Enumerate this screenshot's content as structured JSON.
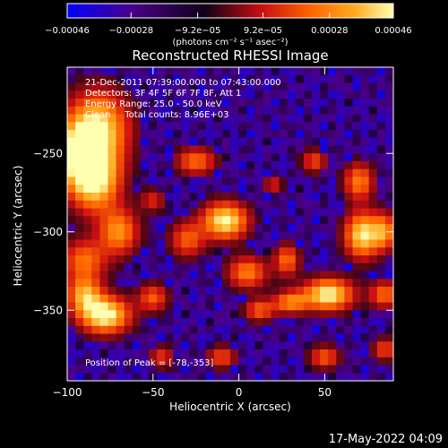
{
  "chart_data": {
    "type": "heatmap",
    "title": "Reconstructed RHESSI Image",
    "xlabel": "Heliocentric X (arcsec)",
    "ylabel": "Heliocentric Y (arcsec)",
    "xlim": [
      -100,
      90
    ],
    "ylim": [
      -395,
      -195
    ],
    "x_ticks": [
      -100,
      -50,
      0,
      50
    ],
    "y_ticks": [
      -250,
      -300,
      -350
    ],
    "colorbar": {
      "ticks": [
        "-0.00046",
        "-0.00028",
        "-9.2e-05",
        "9.2e-05",
        "0.00028",
        "0.00046"
      ],
      "unit_label": "(photons cm⁻² s⁻¹ asec⁻²)",
      "range": [
        -0.00046,
        0.00046
      ]
    },
    "annotations": [
      "21-Dec-2011 07:39:00.000 to 07:43:00.000",
      "Detectors: 3F 4F 5F 6F 7F 8F, Att 1",
      "Energy Range: 25.0 - 50.0 keV",
      "Clean     Total counts: 8.96E+03",
      "Position of Peak = [-78,-353]"
    ],
    "peak": {
      "x": -78,
      "y": -353
    },
    "blobs": [
      {
        "x": -82,
        "y": -234,
        "sx": 12,
        "sy": 16,
        "a": 0.9
      },
      {
        "x": -84,
        "y": -266,
        "sx": 10,
        "sy": 14,
        "a": 1.0
      },
      {
        "x": -95,
        "y": -250,
        "sx": 8,
        "sy": 14,
        "a": 0.7
      },
      {
        "x": -70,
        "y": -300,
        "sx": 8,
        "sy": 10,
        "a": 0.65
      },
      {
        "x": -90,
        "y": -318,
        "sx": 9,
        "sy": 9,
        "a": 0.55
      },
      {
        "x": -78,
        "y": -353,
        "sx": 10,
        "sy": 8,
        "a": 1.0
      },
      {
        "x": -90,
        "y": -340,
        "sx": 7,
        "sy": 8,
        "a": 0.7
      },
      {
        "x": -50,
        "y": -342,
        "sx": 6,
        "sy": 6,
        "a": 0.5
      },
      {
        "x": -25,
        "y": -255,
        "sx": 8,
        "sy": 6,
        "a": 0.55
      },
      {
        "x": -8,
        "y": -293,
        "sx": 9,
        "sy": 8,
        "a": 0.95
      },
      {
        "x": -30,
        "y": -305,
        "sx": 7,
        "sy": 8,
        "a": 0.5
      },
      {
        "x": 5,
        "y": -326,
        "sx": 8,
        "sy": 7,
        "a": 0.6
      },
      {
        "x": 28,
        "y": -318,
        "sx": 5,
        "sy": 7,
        "a": 0.55
      },
      {
        "x": 12,
        "y": -350,
        "sx": 6,
        "sy": 5,
        "a": 0.5
      },
      {
        "x": 30,
        "y": -345,
        "sx": 7,
        "sy": 5,
        "a": 0.6
      },
      {
        "x": 52,
        "y": -340,
        "sx": 10,
        "sy": 7,
        "a": 0.95
      },
      {
        "x": 44,
        "y": -255,
        "sx": 5,
        "sy": 5,
        "a": 0.45
      },
      {
        "x": 70,
        "y": -268,
        "sx": 6,
        "sy": 8,
        "a": 0.6
      },
      {
        "x": 72,
        "y": -302,
        "sx": 7,
        "sy": 10,
        "a": 0.9
      },
      {
        "x": 85,
        "y": -300,
        "sx": 5,
        "sy": 8,
        "a": 0.6
      },
      {
        "x": 85,
        "y": -340,
        "sx": 6,
        "sy": 6,
        "a": 0.55
      },
      {
        "x": 50,
        "y": -380,
        "sx": 6,
        "sy": 5,
        "a": 0.5
      },
      {
        "x": -50,
        "y": -280,
        "sx": 5,
        "sy": 5,
        "a": 0.35
      },
      {
        "x": -45,
        "y": -380,
        "sx": 5,
        "sy": 5,
        "a": 0.4
      },
      {
        "x": -10,
        "y": -380,
        "sx": 6,
        "sy": 5,
        "a": 0.45
      },
      {
        "x": 85,
        "y": -375,
        "sx": 5,
        "sy": 5,
        "a": 0.45
      },
      {
        "x": 20,
        "y": -270,
        "sx": 4,
        "sy": 4,
        "a": 0.35
      }
    ],
    "colormap": [
      "#0000ff",
      "#4a0088",
      "#10001a",
      "#cc1010",
      "#ff6600",
      "#ffaa20",
      "#ffffb0"
    ]
  },
  "footer": {
    "timestamp": "17-May-2022 04:09"
  }
}
